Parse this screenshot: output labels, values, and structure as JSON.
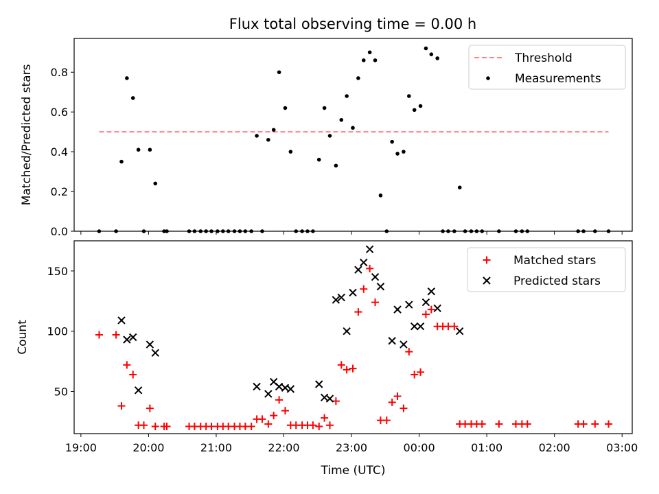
{
  "title": "Flux total observing time = 0.00 h",
  "colors": {
    "threshold": "#ff7f7f",
    "measurements": "#000000",
    "matched": "#ff0000",
    "predicted": "#000000"
  },
  "chart_data": [
    {
      "type": "scatter",
      "ylabel": "Matched/Predicted stars",
      "xlim": [
        18.9,
        27.15
      ],
      "ylim": [
        0,
        0.97
      ],
      "yticks": [
        0.0,
        0.2,
        0.4,
        0.6,
        0.8
      ],
      "ytick_labels": [
        "0.0",
        "0.2",
        "0.4",
        "0.6",
        "0.8"
      ],
      "legend": {
        "placement": "top-right",
        "entries": [
          "Threshold",
          "Measurements"
        ]
      },
      "threshold": {
        "name": "Threshold",
        "value": 0.5,
        "x_range": [
          19.27,
          26.8
        ],
        "style": "dashed"
      },
      "series": [
        {
          "name": "Measurements",
          "marker": "dot",
          "x": [
            19.27,
            19.52,
            19.6,
            19.68,
            19.77,
            19.85,
            19.93,
            20.02,
            20.1,
            20.23,
            20.27,
            20.6,
            20.68,
            20.77,
            20.85,
            20.93,
            21.02,
            21.1,
            21.18,
            21.27,
            21.35,
            21.43,
            21.52,
            21.6,
            21.68,
            21.77,
            21.85,
            21.93,
            22.02,
            22.1,
            22.18,
            22.27,
            22.35,
            22.43,
            22.52,
            22.6,
            22.68,
            22.77,
            22.85,
            22.93,
            23.02,
            23.1,
            23.18,
            23.27,
            23.35,
            23.43,
            23.52,
            23.6,
            23.68,
            23.77,
            23.85,
            23.93,
            24.02,
            24.1,
            24.18,
            24.27,
            24.35,
            24.43,
            24.52,
            24.6,
            24.68,
            24.77,
            24.85,
            24.93,
            25.18,
            25.43,
            25.52,
            25.6,
            26.35,
            26.43,
            26.6,
            26.8
          ],
          "y": [
            0.0,
            0.0,
            0.35,
            0.77,
            0.67,
            0.41,
            0.0,
            0.41,
            0.24,
            0.0,
            0.0,
            0.0,
            0.0,
            0.0,
            0.0,
            0.0,
            0.0,
            0.0,
            0.0,
            0.0,
            0.0,
            0.0,
            0.0,
            0.48,
            0.0,
            0.46,
            0.51,
            0.8,
            0.62,
            0.4,
            0.0,
            0.0,
            0.0,
            0.0,
            0.36,
            0.62,
            0.48,
            0.33,
            0.56,
            0.68,
            0.52,
            0.77,
            0.86,
            0.9,
            0.86,
            0.18,
            0.0,
            0.45,
            0.39,
            0.4,
            0.68,
            0.61,
            0.63,
            0.92,
            0.89,
            0.87,
            0.0,
            0.0,
            0.0,
            0.22,
            0.0,
            0.0,
            0.0,
            0.0,
            0.0,
            0.0,
            0.0,
            0.0,
            0.0,
            0.0,
            0.0,
            0.0
          ]
        }
      ]
    },
    {
      "type": "scatter",
      "ylabel": "Count",
      "xlabel": "Time (UTC)",
      "xlim": [
        18.9,
        27.15
      ],
      "ylim": [
        15,
        175
      ],
      "yticks": [
        50,
        100,
        150
      ],
      "ytick_labels": [
        "50",
        "100",
        "150"
      ],
      "xticks": [
        19,
        20,
        21,
        22,
        23,
        24,
        25,
        26,
        27
      ],
      "xtick_labels": [
        "19:00",
        "20:00",
        "21:00",
        "22:00",
        "23:00",
        "00:00",
        "01:00",
        "02:00",
        "03:00"
      ],
      "legend": {
        "placement": "top-right",
        "entries": [
          "Matched stars",
          "Predicted stars"
        ]
      },
      "series": [
        {
          "name": "Matched stars",
          "marker": "plus",
          "x": [
            19.27,
            19.52,
            19.6,
            19.68,
            19.77,
            19.85,
            19.93,
            20.02,
            20.1,
            20.23,
            20.27,
            20.6,
            20.68,
            20.77,
            20.85,
            20.93,
            21.02,
            21.1,
            21.18,
            21.27,
            21.35,
            21.43,
            21.52,
            21.6,
            21.68,
            21.77,
            21.85,
            21.93,
            22.02,
            22.1,
            22.18,
            22.27,
            22.35,
            22.43,
            22.52,
            22.6,
            22.68,
            22.77,
            22.85,
            22.93,
            23.02,
            23.1,
            23.18,
            23.27,
            23.35,
            23.43,
            23.52,
            23.6,
            23.68,
            23.77,
            23.85,
            23.93,
            24.02,
            24.1,
            24.18,
            24.27,
            24.35,
            24.43,
            24.52,
            24.6,
            24.68,
            24.77,
            24.85,
            24.93,
            25.18,
            25.43,
            25.52,
            25.6,
            26.35,
            26.43,
            26.6,
            26.8
          ],
          "y": [
            97,
            97,
            38,
            72,
            64,
            22,
            22,
            36,
            21,
            21,
            21,
            21,
            21,
            21,
            21,
            21,
            21,
            21,
            21,
            21,
            21,
            21,
            21,
            27,
            27,
            23,
            30,
            43,
            34,
            22,
            22,
            22,
            22,
            22,
            21,
            28,
            22,
            42,
            72,
            68,
            69,
            116,
            135,
            152,
            124,
            26,
            26,
            41,
            46,
            36,
            83,
            64,
            66,
            114,
            118,
            104,
            104,
            104,
            104,
            23,
            23,
            23,
            23,
            23,
            23,
            23,
            23,
            23,
            23,
            23,
            23,
            23
          ]
        },
        {
          "name": "Predicted stars",
          "marker": "cross",
          "x": [
            19.6,
            19.68,
            19.77,
            19.85,
            20.02,
            20.1,
            21.6,
            21.77,
            21.85,
            21.93,
            22.02,
            22.1,
            22.52,
            22.6,
            22.68,
            22.77,
            22.85,
            22.93,
            23.02,
            23.1,
            23.18,
            23.27,
            23.35,
            23.43,
            23.6,
            23.68,
            23.77,
            23.85,
            23.93,
            24.02,
            24.1,
            24.18,
            24.27,
            24.6
          ],
          "y": [
            109,
            93,
            95,
            51,
            89,
            82,
            54,
            48,
            58,
            54,
            53,
            52,
            56,
            45,
            44,
            126,
            128,
            100,
            132,
            151,
            157,
            168,
            145,
            137,
            92,
            118,
            89,
            122,
            104,
            104,
            124,
            133,
            119,
            100
          ]
        }
      ]
    }
  ]
}
